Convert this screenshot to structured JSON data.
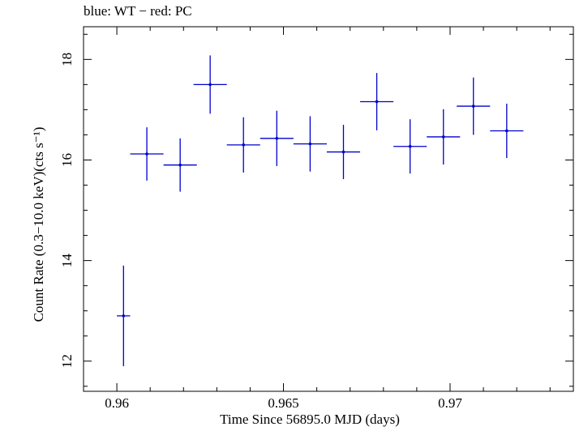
{
  "chart_data": {
    "type": "scatter",
    "title": "blue: WT − red: PC",
    "xlabel": "Time Since 56895.0 MJD (days)",
    "ylabel": "Count Rate (0.3−10.0 keV)(cts s⁻¹)",
    "xlim": [
      0.959,
      0.9737
    ],
    "ylim": [
      11.4,
      18.65
    ],
    "x_ticks": [
      0.96,
      0.965,
      0.97
    ],
    "x_tick_labels": [
      "0.96",
      "0.965",
      "0.97"
    ],
    "y_ticks": [
      12,
      14,
      16,
      18
    ],
    "y_tick_labels": [
      "12",
      "14",
      "16",
      "18"
    ],
    "grid": false,
    "series": [
      {
        "color": "#0000cc",
        "points": [
          {
            "x": 0.9602,
            "xerr": 0.0002,
            "y": 12.9,
            "yerr": 1.0
          },
          {
            "x": 0.9609,
            "xerr": 0.0005,
            "y": 16.12,
            "yerr": 0.53
          },
          {
            "x": 0.9619,
            "xerr": 0.0005,
            "y": 15.9,
            "yerr": 0.53
          },
          {
            "x": 0.9628,
            "xerr": 0.0005,
            "y": 17.5,
            "yerr": 0.58
          },
          {
            "x": 0.9638,
            "xerr": 0.0005,
            "y": 16.3,
            "yerr": 0.55
          },
          {
            "x": 0.9648,
            "xerr": 0.0005,
            "y": 16.43,
            "yerr": 0.55
          },
          {
            "x": 0.9658,
            "xerr": 0.0005,
            "y": 16.32,
            "yerr": 0.55
          },
          {
            "x": 0.9668,
            "xerr": 0.0005,
            "y": 16.16,
            "yerr": 0.54
          },
          {
            "x": 0.9678,
            "xerr": 0.0005,
            "y": 17.16,
            "yerr": 0.57
          },
          {
            "x": 0.9688,
            "xerr": 0.0005,
            "y": 16.27,
            "yerr": 0.54
          },
          {
            "x": 0.9698,
            "xerr": 0.0005,
            "y": 16.46,
            "yerr": 0.55
          },
          {
            "x": 0.9707,
            "xerr": 0.0005,
            "y": 17.07,
            "yerr": 0.57
          },
          {
            "x": 0.9717,
            "xerr": 0.0005,
            "y": 16.58,
            "yerr": 0.54
          }
        ]
      }
    ]
  }
}
